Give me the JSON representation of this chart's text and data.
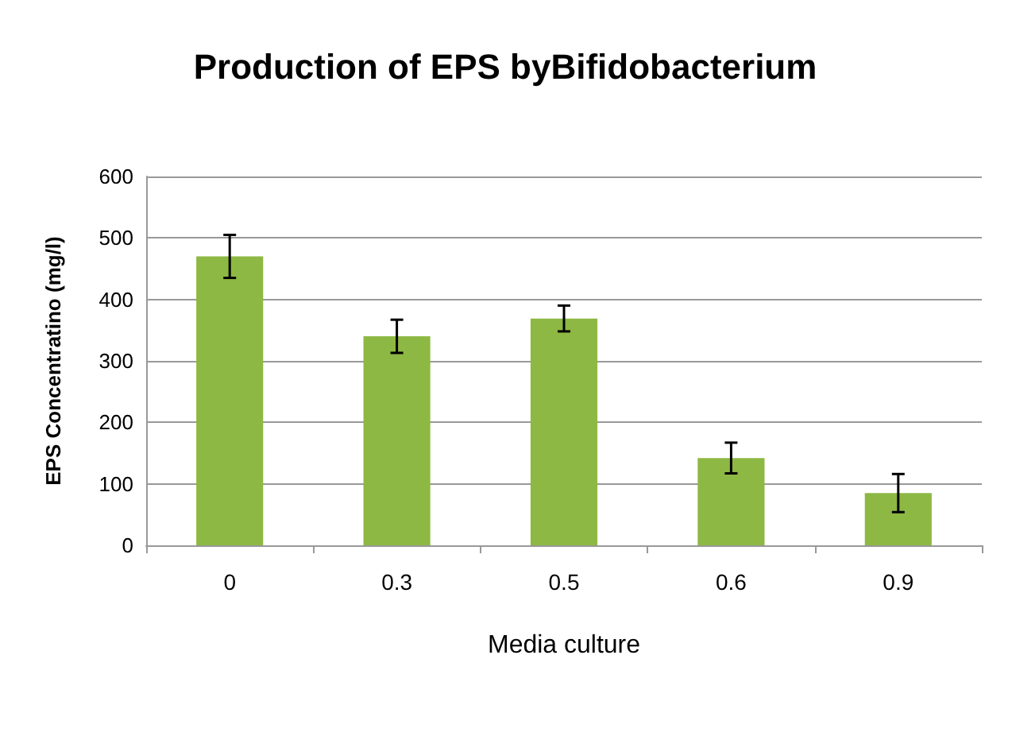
{
  "chart_data": {
    "type": "bar",
    "title": "Production of EPS byBifidobacterium",
    "xlabel": "Media culture",
    "ylabel": "EPS Concentratino (mg/l)",
    "categories": [
      "0",
      "0.3",
      "0.5",
      "0.6",
      "0.9"
    ],
    "values": [
      470,
      340,
      369,
      142,
      85
    ],
    "errors": [
      35,
      27,
      21,
      25,
      31
    ],
    "color": "#8db843",
    "ylim": [
      0,
      600
    ],
    "yticks": [
      0,
      100,
      200,
      300,
      400,
      500,
      600
    ],
    "grid": "y"
  }
}
